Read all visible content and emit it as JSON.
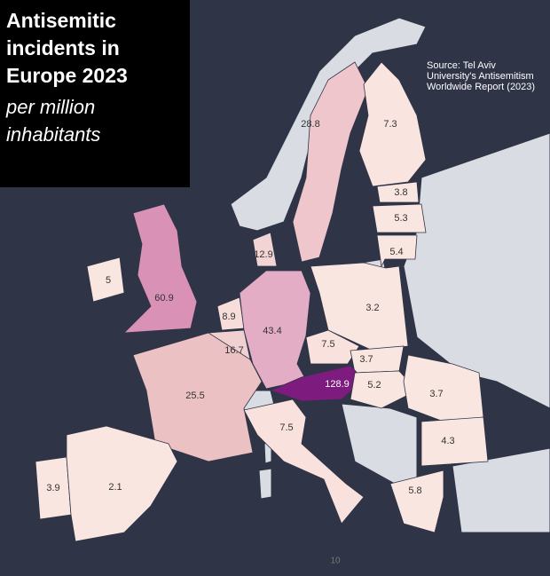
{
  "title": "Antisemitic incidents in Europe 2023",
  "subtitle": "per million inhabitants",
  "source": "Source: Tel Aviv University's Antisemitism Worldwide Report (2023)",
  "page_number": "10",
  "regions": [
    {
      "value": 28.8,
      "color": "#eec6cb"
    },
    {
      "value": 7.3,
      "color": "#f9e4df"
    },
    {
      "value": 3.8,
      "color": "#fae6e1"
    },
    {
      "value": 5.3,
      "color": "#fae6e1"
    },
    {
      "value": 5.4,
      "color": "#fae6e1"
    },
    {
      "value": 12.9,
      "color": "#f3d4d5"
    },
    {
      "value": 5,
      "color": "#fae6e1"
    },
    {
      "value": 60.9,
      "color": "#d991b6"
    },
    {
      "value": 8.9,
      "color": "#f7dedb"
    },
    {
      "value": 16.7,
      "color": "#f1d0d2"
    },
    {
      "value": 43.4,
      "color": "#e3adc6"
    },
    {
      "value": 3.2,
      "color": "#fae6e1"
    },
    {
      "value": 7.5,
      "color": "#f9e2de"
    },
    {
      "value": 3.7,
      "color": "#fae6e1"
    },
    {
      "value": 128.9,
      "color": "#7d1b7e"
    },
    {
      "value": 5.2,
      "color": "#fae6e1"
    },
    {
      "value": 3.7,
      "color": "#fae6e1"
    },
    {
      "value": 25.5,
      "color": "#ecc1c3"
    },
    {
      "value": 7.5,
      "color": "#f9e2de"
    },
    {
      "value": 4.3,
      "color": "#fae6e1"
    },
    {
      "value": 5.8,
      "color": "#fae6e1"
    },
    {
      "value": 3.9,
      "color": "#fae6e1"
    },
    {
      "value": 2.1,
      "color": "#fae6e1"
    }
  ]
}
